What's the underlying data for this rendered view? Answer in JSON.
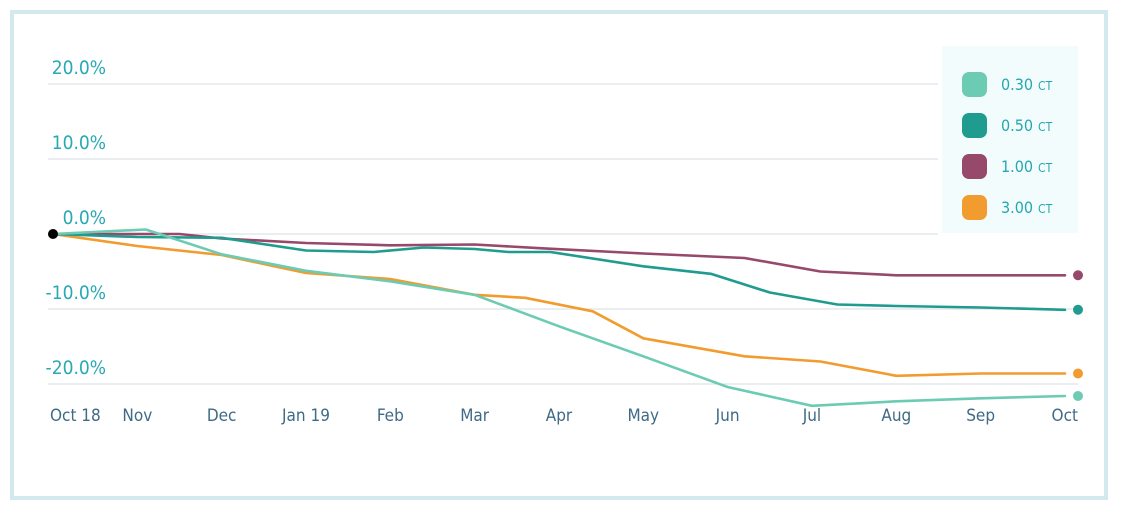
{
  "colors": {
    "frame": "#d3e9ee",
    "grid": "#dde3e6",
    "y_label": "#28a9b3",
    "x_label": "#3f6a86",
    "origin_marker": "#000000",
    "legend_bg": "#f2fcfd"
  },
  "chart_data": {
    "type": "line",
    "x": [
      "Oct 18",
      "Nov",
      "Dec",
      "Jan 19",
      "Feb",
      "Mar",
      "Apr",
      "May",
      "Jun",
      "Jul",
      "Aug",
      "Sep",
      "Oct"
    ],
    "y_ticks": [
      "20.0%",
      "10.0%",
      "0.0%",
      "-10.0%",
      "-20.0%"
    ],
    "ylim": [
      -20,
      20
    ],
    "y_unit": "%",
    "grid": true,
    "legend_position": "top-right",
    "series": [
      {
        "name": "0.30",
        "unit": "CT",
        "color": "#6ccbb3",
        "points": [
          [
            0,
            0
          ],
          [
            1.1,
            0.6
          ],
          [
            2,
            -2.7
          ],
          [
            3,
            -4.9
          ],
          [
            4,
            -6.3
          ],
          [
            5,
            -8.1
          ],
          [
            6,
            -12.3
          ],
          [
            7,
            -16.3
          ],
          [
            8,
            -20.4
          ],
          [
            9,
            -22.9
          ],
          [
            10,
            -22.3
          ],
          [
            11,
            -21.9
          ],
          [
            12,
            -21.6
          ]
        ]
      },
      {
        "name": "0.50",
        "unit": "CT",
        "color": "#1f9b90",
        "points": [
          [
            0,
            0
          ],
          [
            1,
            -0.4
          ],
          [
            2,
            -0.5
          ],
          [
            3,
            -2.2
          ],
          [
            3.8,
            -2.4
          ],
          [
            4.4,
            -1.8
          ],
          [
            5,
            -2.0
          ],
          [
            5.4,
            -2.4
          ],
          [
            5.9,
            -2.4
          ],
          [
            7,
            -4.3
          ],
          [
            7.8,
            -5.3
          ],
          [
            8.5,
            -7.8
          ],
          [
            9.3,
            -9.4
          ],
          [
            10,
            -9.6
          ],
          [
            11,
            -9.8
          ],
          [
            12,
            -10.1
          ]
        ]
      },
      {
        "name": "1.00",
        "unit": "CT",
        "color": "#96496a",
        "points": [
          [
            0,
            0
          ],
          [
            1.1,
            0
          ],
          [
            1.5,
            0
          ],
          [
            2,
            -0.6
          ],
          [
            3,
            -1.2
          ],
          [
            4,
            -1.5
          ],
          [
            5,
            -1.4
          ],
          [
            5.8,
            -1.9
          ],
          [
            7,
            -2.6
          ],
          [
            8.2,
            -3.2
          ],
          [
            9.1,
            -5.0
          ],
          [
            10,
            -5.5
          ],
          [
            12,
            -5.5
          ]
        ]
      },
      {
        "name": "3.00",
        "unit": "CT",
        "color": "#f29b2e",
        "points": [
          [
            0,
            0
          ],
          [
            1,
            -1.6
          ],
          [
            2,
            -2.8
          ],
          [
            3,
            -5.2
          ],
          [
            4,
            -6.0
          ],
          [
            5,
            -8.1
          ],
          [
            5.6,
            -8.5
          ],
          [
            6.4,
            -10.3
          ],
          [
            7,
            -13.9
          ],
          [
            8.2,
            -16.3
          ],
          [
            9.1,
            -17.0
          ],
          [
            10,
            -18.9
          ],
          [
            11,
            -18.6
          ],
          [
            12,
            -18.6
          ]
        ]
      }
    ]
  }
}
